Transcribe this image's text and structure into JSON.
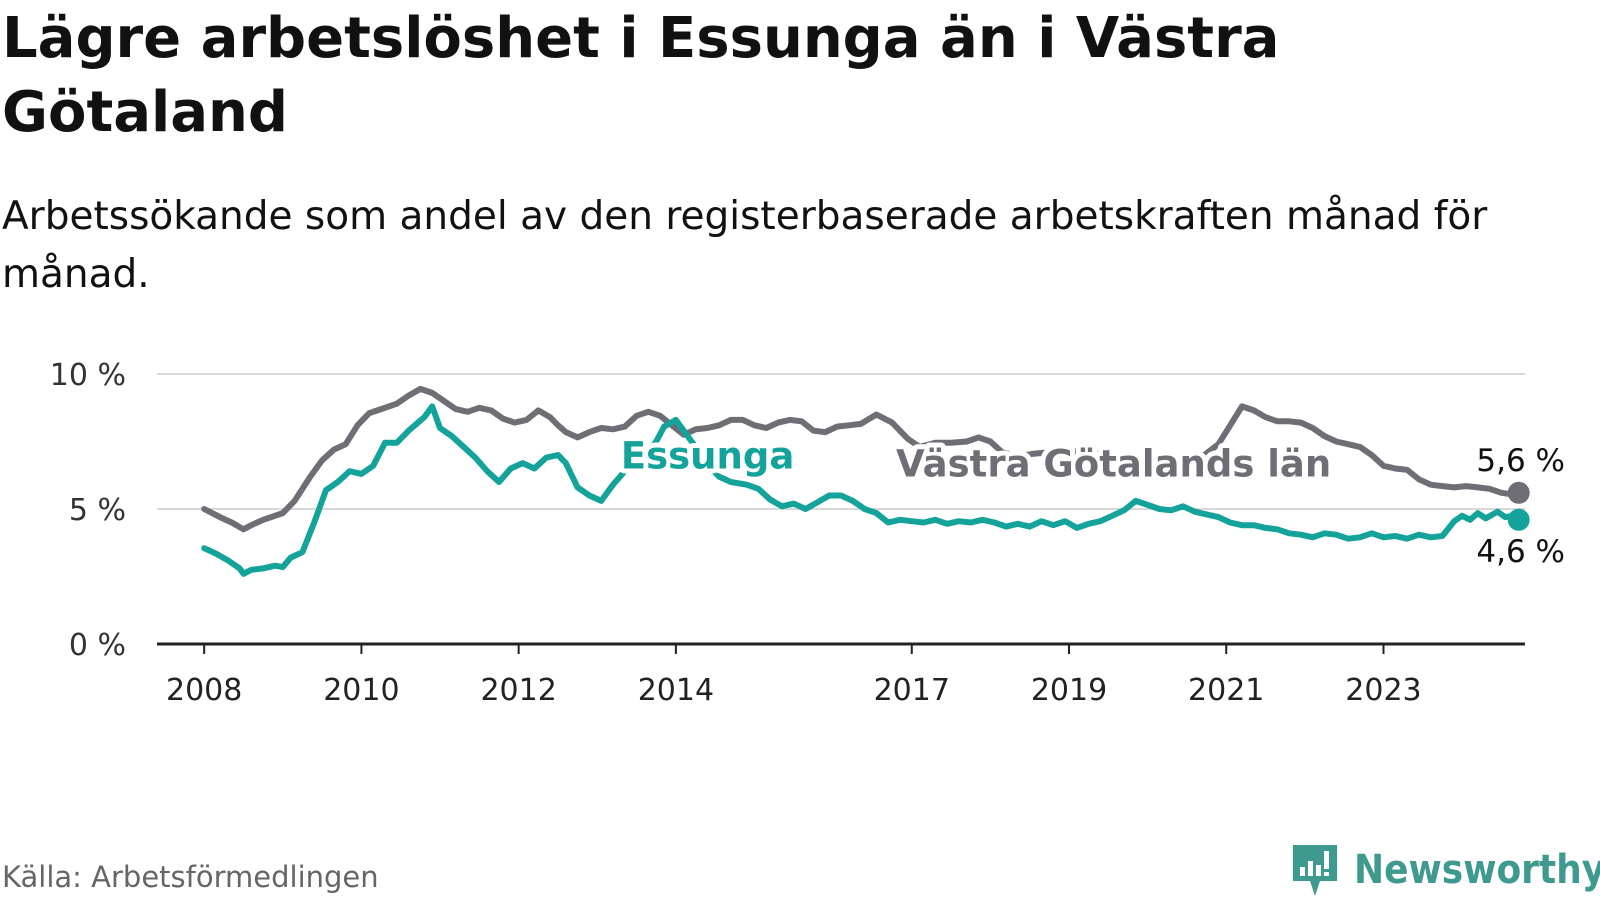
{
  "title": "Lägre arbetslöshet i Essunga än i Västra Götaland",
  "subtitle": "Arbetssökande som andel av den registerbaserade arbetskraften månad för månad.",
  "source": "Källa: Arbetsförmedlingen",
  "brand": "Newsworthy",
  "colors": {
    "essunga": "#14a39a",
    "vastra_gotaland": "#6e6e76",
    "grid": "#d9d9d9",
    "axis": "#222222",
    "brand": "#3e9a8e"
  },
  "chart_data": {
    "type": "line",
    "x_unit": "year",
    "xlim": [
      2007.4,
      2024.8
    ],
    "ylim": [
      0,
      10
    ],
    "y_ticks": [
      {
        "value": 0,
        "label": "0 %"
      },
      {
        "value": 5,
        "label": "5 %"
      },
      {
        "value": 10,
        "label": "10 %"
      }
    ],
    "x_ticks": [
      {
        "value": 2008,
        "label": "2008"
      },
      {
        "value": 2010,
        "label": "2010"
      },
      {
        "value": 2012,
        "label": "2012"
      },
      {
        "value": 2014,
        "label": "2014"
      },
      {
        "value": 2017,
        "label": "2017"
      },
      {
        "value": 2019,
        "label": "2019"
      },
      {
        "value": 2021,
        "label": "2021"
      },
      {
        "value": 2023,
        "label": "2023"
      }
    ],
    "grid": true,
    "series": [
      {
        "name": "Västra Götalands län",
        "color_key": "vastra_gotaland",
        "label_pos": {
          "x": 2016.8,
          "y": 6.2
        },
        "end_label": "5,6 %",
        "end_label_position": "above",
        "points": [
          [
            2008.0,
            5.0
          ],
          [
            2008.2,
            4.7
          ],
          [
            2008.35,
            4.5
          ],
          [
            2008.5,
            4.25
          ],
          [
            2008.6,
            4.4
          ],
          [
            2008.75,
            4.6
          ],
          [
            2009.0,
            4.85
          ],
          [
            2009.15,
            5.3
          ],
          [
            2009.35,
            6.2
          ],
          [
            2009.5,
            6.8
          ],
          [
            2009.65,
            7.2
          ],
          [
            2009.8,
            7.4
          ],
          [
            2009.95,
            8.1
          ],
          [
            2010.1,
            8.55
          ],
          [
            2010.25,
            8.7
          ],
          [
            2010.45,
            8.9
          ],
          [
            2010.6,
            9.2
          ],
          [
            2010.75,
            9.45
          ],
          [
            2010.9,
            9.3
          ],
          [
            2011.05,
            9.0
          ],
          [
            2011.2,
            8.7
          ],
          [
            2011.35,
            8.6
          ],
          [
            2011.5,
            8.75
          ],
          [
            2011.65,
            8.65
          ],
          [
            2011.8,
            8.35
          ],
          [
            2011.95,
            8.2
          ],
          [
            2012.1,
            8.3
          ],
          [
            2012.25,
            8.65
          ],
          [
            2012.4,
            8.4
          ],
          [
            2012.5,
            8.1
          ],
          [
            2012.6,
            7.85
          ],
          [
            2012.75,
            7.65
          ],
          [
            2012.9,
            7.85
          ],
          [
            2013.05,
            8.0
          ],
          [
            2013.2,
            7.95
          ],
          [
            2013.35,
            8.05
          ],
          [
            2013.5,
            8.45
          ],
          [
            2013.65,
            8.6
          ],
          [
            2013.8,
            8.45
          ],
          [
            2013.95,
            8.1
          ],
          [
            2014.1,
            7.75
          ],
          [
            2014.25,
            7.95
          ],
          [
            2014.4,
            8.0
          ],
          [
            2014.55,
            8.1
          ],
          [
            2014.7,
            8.3
          ],
          [
            2014.85,
            8.3
          ],
          [
            2015.0,
            8.1
          ],
          [
            2015.15,
            8.0
          ],
          [
            2015.3,
            8.2
          ],
          [
            2015.45,
            8.3
          ],
          [
            2015.6,
            8.25
          ],
          [
            2015.75,
            7.9
          ],
          [
            2015.9,
            7.85
          ],
          [
            2016.05,
            8.05
          ],
          [
            2016.2,
            8.1
          ],
          [
            2016.35,
            8.15
          ],
          [
            2016.55,
            8.5
          ],
          [
            2016.75,
            8.2
          ],
          [
            2016.95,
            7.6
          ],
          [
            2017.1,
            7.3
          ],
          [
            2017.3,
            7.45
          ],
          [
            2017.5,
            7.45
          ],
          [
            2017.7,
            7.5
          ],
          [
            2017.85,
            7.65
          ],
          [
            2018.0,
            7.5
          ],
          [
            2018.15,
            7.1
          ],
          [
            2018.35,
            6.95
          ],
          [
            2018.55,
            7.05
          ],
          [
            2018.75,
            7.1
          ],
          [
            2018.95,
            7.1
          ],
          [
            2019.15,
            7.15
          ],
          [
            2019.35,
            7.05
          ],
          [
            2019.55,
            6.9
          ],
          [
            2019.75,
            7.0
          ],
          [
            2019.95,
            6.9
          ],
          [
            2020.1,
            6.75
          ],
          [
            2020.3,
            6.75
          ],
          [
            2020.5,
            6.8
          ],
          [
            2020.7,
            6.95
          ],
          [
            2020.9,
            7.4
          ],
          [
            2021.05,
            8.1
          ],
          [
            2021.2,
            8.8
          ],
          [
            2021.35,
            8.65
          ],
          [
            2021.5,
            8.4
          ],
          [
            2021.65,
            8.25
          ],
          [
            2021.8,
            8.25
          ],
          [
            2021.95,
            8.2
          ],
          [
            2022.1,
            8.0
          ],
          [
            2022.25,
            7.7
          ],
          [
            2022.4,
            7.5
          ],
          [
            2022.55,
            7.4
          ],
          [
            2022.7,
            7.3
          ],
          [
            2022.85,
            7.0
          ],
          [
            2023.0,
            6.6
          ],
          [
            2023.15,
            6.5
          ],
          [
            2023.3,
            6.45
          ],
          [
            2023.45,
            6.1
          ],
          [
            2023.6,
            5.9
          ],
          [
            2023.75,
            5.85
          ],
          [
            2023.9,
            5.8
          ],
          [
            2024.05,
            5.85
          ],
          [
            2024.2,
            5.8
          ],
          [
            2024.35,
            5.75
          ],
          [
            2024.5,
            5.6
          ],
          [
            2024.62,
            5.55
          ],
          [
            2024.72,
            5.6
          ]
        ]
      },
      {
        "name": "Essunga",
        "color_key": "essunga",
        "label_pos": {
          "x": 2013.3,
          "y": 6.5
        },
        "end_label": "4,6 %",
        "end_label_position": "below",
        "points": [
          [
            2008.0,
            3.55
          ],
          [
            2008.15,
            3.35
          ],
          [
            2008.3,
            3.1
          ],
          [
            2008.45,
            2.8
          ],
          [
            2008.5,
            2.6
          ],
          [
            2008.6,
            2.75
          ],
          [
            2008.75,
            2.8
          ],
          [
            2008.9,
            2.9
          ],
          [
            2009.0,
            2.85
          ],
          [
            2009.1,
            3.2
          ],
          [
            2009.25,
            3.4
          ],
          [
            2009.4,
            4.5
          ],
          [
            2009.55,
            5.7
          ],
          [
            2009.7,
            6.0
          ],
          [
            2009.85,
            6.4
          ],
          [
            2010.0,
            6.3
          ],
          [
            2010.15,
            6.6
          ],
          [
            2010.3,
            7.45
          ],
          [
            2010.45,
            7.45
          ],
          [
            2010.6,
            7.9
          ],
          [
            2010.8,
            8.4
          ],
          [
            2010.9,
            8.8
          ],
          [
            2011.0,
            8.0
          ],
          [
            2011.15,
            7.7
          ],
          [
            2011.3,
            7.3
          ],
          [
            2011.45,
            6.9
          ],
          [
            2011.6,
            6.4
          ],
          [
            2011.75,
            6.0
          ],
          [
            2011.9,
            6.5
          ],
          [
            2012.05,
            6.7
          ],
          [
            2012.2,
            6.5
          ],
          [
            2012.35,
            6.9
          ],
          [
            2012.5,
            7.0
          ],
          [
            2012.6,
            6.7
          ],
          [
            2012.75,
            5.8
          ],
          [
            2012.9,
            5.5
          ],
          [
            2013.05,
            5.3
          ],
          [
            2013.2,
            5.9
          ],
          [
            2013.35,
            6.4
          ],
          [
            2013.5,
            6.85
          ],
          [
            2013.6,
            6.9
          ],
          [
            2013.75,
            7.5
          ],
          [
            2013.85,
            8.05
          ],
          [
            2014.0,
            8.3
          ],
          [
            2014.15,
            7.7
          ],
          [
            2014.3,
            7.1
          ],
          [
            2014.45,
            6.5
          ],
          [
            2014.55,
            6.2
          ],
          [
            2014.7,
            6.0
          ],
          [
            2014.9,
            5.9
          ],
          [
            2015.05,
            5.75
          ],
          [
            2015.2,
            5.35
          ],
          [
            2015.35,
            5.1
          ],
          [
            2015.5,
            5.2
          ],
          [
            2015.65,
            5.0
          ],
          [
            2015.8,
            5.25
          ],
          [
            2015.95,
            5.5
          ],
          [
            2016.1,
            5.5
          ],
          [
            2016.25,
            5.3
          ],
          [
            2016.4,
            5.0
          ],
          [
            2016.55,
            4.85
          ],
          [
            2016.7,
            4.5
          ],
          [
            2016.85,
            4.6
          ],
          [
            2017.0,
            4.55
          ],
          [
            2017.15,
            4.5
          ],
          [
            2017.3,
            4.6
          ],
          [
            2017.45,
            4.45
          ],
          [
            2017.6,
            4.55
          ],
          [
            2017.75,
            4.5
          ],
          [
            2017.9,
            4.6
          ],
          [
            2018.05,
            4.5
          ],
          [
            2018.2,
            4.35
          ],
          [
            2018.35,
            4.45
          ],
          [
            2018.5,
            4.35
          ],
          [
            2018.65,
            4.55
          ],
          [
            2018.8,
            4.4
          ],
          [
            2018.95,
            4.55
          ],
          [
            2019.1,
            4.3
          ],
          [
            2019.25,
            4.45
          ],
          [
            2019.4,
            4.55
          ],
          [
            2019.55,
            4.75
          ],
          [
            2019.7,
            4.95
          ],
          [
            2019.85,
            5.3
          ],
          [
            2020.0,
            5.15
          ],
          [
            2020.15,
            5.0
          ],
          [
            2020.3,
            4.95
          ],
          [
            2020.45,
            5.1
          ],
          [
            2020.6,
            4.9
          ],
          [
            2020.75,
            4.8
          ],
          [
            2020.9,
            4.7
          ],
          [
            2021.05,
            4.5
          ],
          [
            2021.2,
            4.4
          ],
          [
            2021.35,
            4.4
          ],
          [
            2021.5,
            4.3
          ],
          [
            2021.65,
            4.25
          ],
          [
            2021.8,
            4.1
          ],
          [
            2021.95,
            4.05
          ],
          [
            2022.1,
            3.95
          ],
          [
            2022.25,
            4.1
          ],
          [
            2022.4,
            4.05
          ],
          [
            2022.55,
            3.9
          ],
          [
            2022.7,
            3.95
          ],
          [
            2022.85,
            4.1
          ],
          [
            2023.0,
            3.95
          ],
          [
            2023.15,
            4.0
          ],
          [
            2023.3,
            3.9
          ],
          [
            2023.45,
            4.05
          ],
          [
            2023.6,
            3.95
          ],
          [
            2023.75,
            4.0
          ],
          [
            2023.9,
            4.55
          ],
          [
            2024.0,
            4.75
          ],
          [
            2024.1,
            4.6
          ],
          [
            2024.2,
            4.85
          ],
          [
            2024.3,
            4.65
          ],
          [
            2024.45,
            4.9
          ],
          [
            2024.55,
            4.7
          ],
          [
            2024.65,
            4.75
          ],
          [
            2024.72,
            4.6
          ]
        ]
      }
    ]
  }
}
